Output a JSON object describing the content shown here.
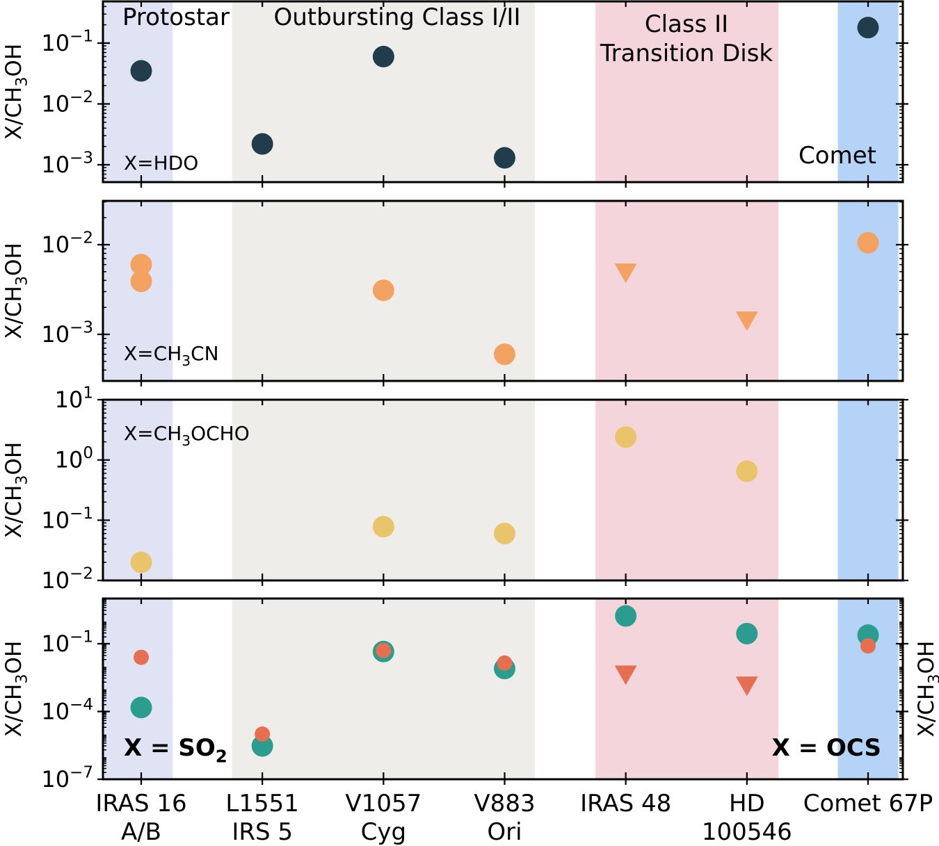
{
  "categories": [
    {
      "line1": "IRAS 16",
      "line2": "A/B"
    },
    {
      "line1": "L1551",
      "line2": "IRS 5"
    },
    {
      "line1": "V1057",
      "line2": "Cyg"
    },
    {
      "line1": "V883",
      "line2": "Ori"
    },
    {
      "line1": "IRAS 48",
      "line2": ""
    },
    {
      "line1": "HD",
      "line2": "100546"
    },
    {
      "line1": "Comet 67P",
      "line2": ""
    }
  ],
  "regions": [
    {
      "label": "Protostar",
      "color": "#e0e3f3",
      "from": 0,
      "to": 0.26
    },
    {
      "label": "Outbursting Class I/II",
      "color": "#eeede9",
      "from": 0.75,
      "to": 3.25
    },
    {
      "label": "Class II\nTransition Disk",
      "color": "#f5d5dc",
      "from": 3.75,
      "to": 5.26
    },
    {
      "label": "Comet",
      "color": "#b5d3f7",
      "from": 5.75,
      "to": 6.25
    }
  ],
  "colors": {
    "hdo": "#213c4b",
    "ch3cn": "#f4a261",
    "ch3ocho": "#e9c46a",
    "so2": "#2a9d8f",
    "ocs": "#e76f51"
  },
  "chart_data": [
    {
      "type": "scatter",
      "yscale": "log",
      "ylim": [
        0.0006,
        0.9
      ],
      "ylabel": "X/CH3OH",
      "annotation": "X=HDO",
      "yticks": [
        "10^-1",
        "10^-2",
        "10^-3"
      ],
      "series": [
        {
          "name": "HDO",
          "points": [
            {
              "x": "IRAS 16 A/B",
              "y": 0.035,
              "marker": "circle"
            },
            {
              "x": "L1551 IRS 5",
              "y": 0.0022,
              "marker": "circle"
            },
            {
              "x": "V1057 Cyg",
              "y": 0.06,
              "marker": "circle"
            },
            {
              "x": "V883 Ori",
              "y": 0.0013,
              "marker": "circle"
            },
            {
              "x": "Comet 67P",
              "y": 0.18,
              "marker": "circle"
            }
          ]
        }
      ]
    },
    {
      "type": "scatter",
      "yscale": "log",
      "ylim": [
        0.0003,
        0.03
      ],
      "ylabel": "X/CH3OH",
      "annotation": "X=CH3CN",
      "yticks": [
        "10^-2",
        "10^-3"
      ],
      "series": [
        {
          "name": "CH3CN",
          "points": [
            {
              "x": "IRAS 16 A/B",
              "y": 0.006,
              "marker": "circle"
            },
            {
              "x": "IRAS 16 A/B",
              "y": 0.0039,
              "marker": "circle"
            },
            {
              "x": "V1057 Cyg",
              "y": 0.0031,
              "marker": "circle"
            },
            {
              "x": "V883 Ori",
              "y": 0.0006,
              "marker": "circle"
            },
            {
              "x": "IRAS 48",
              "y": 0.0048,
              "marker": "triangle-down",
              "note": "upper limit"
            },
            {
              "x": "HD 100546",
              "y": 0.0014,
              "marker": "triangle-down",
              "note": "upper limit"
            },
            {
              "x": "Comet 67P",
              "y": 0.0105,
              "marker": "circle"
            }
          ]
        }
      ]
    },
    {
      "type": "scatter",
      "yscale": "log",
      "ylim": [
        0.01,
        10
      ],
      "ylabel": "X/CH3OH",
      "annotation": "X=CH3OCHO",
      "yticks": [
        "10^1",
        "10^0",
        "10^-1",
        "10^-2"
      ],
      "series": [
        {
          "name": "CH3OCHO",
          "points": [
            {
              "x": "IRAS 16 A/B",
              "y": 0.02,
              "marker": "circle"
            },
            {
              "x": "V1057 Cyg",
              "y": 0.078,
              "marker": "circle"
            },
            {
              "x": "V883 Ori",
              "y": 0.06,
              "marker": "circle"
            },
            {
              "x": "IRAS 48",
              "y": 2.4,
              "marker": "circle"
            },
            {
              "x": "HD 100546",
              "y": 0.65,
              "marker": "circle"
            }
          ]
        }
      ]
    },
    {
      "type": "scatter",
      "yscale": "log",
      "ylim": [
        1e-07,
        3
      ],
      "ylabel": "X/CH3OH",
      "ylabel_right": "X/CH3OH",
      "annotation_left": "X = SO2",
      "annotation_right": "X = OCS",
      "yticks": [
        "10^-1",
        "10^-4",
        "10^-7"
      ],
      "series": [
        {
          "name": "SO2",
          "points": [
            {
              "x": "IRAS 16 A/B",
              "y": 0.00015,
              "marker": "circle"
            },
            {
              "x": "L1551 IRS 5",
              "y": 3e-06,
              "marker": "circle"
            },
            {
              "x": "V1057 Cyg",
              "y": 0.045,
              "marker": "circle"
            },
            {
              "x": "V883 Ori",
              "y": 0.008,
              "marker": "circle"
            },
            {
              "x": "IRAS 48",
              "y": 1.7,
              "marker": "circle"
            },
            {
              "x": "HD 100546",
              "y": 0.28,
              "marker": "circle"
            },
            {
              "x": "Comet 67P",
              "y": 0.24,
              "marker": "circle"
            }
          ]
        },
        {
          "name": "OCS",
          "points": [
            {
              "x": "IRAS 16 A/B",
              "y": 0.025,
              "marker": "circle"
            },
            {
              "x": "L1551 IRS 5",
              "y": 1e-05,
              "marker": "circle"
            },
            {
              "x": "V1057 Cyg",
              "y": 0.05,
              "marker": "circle"
            },
            {
              "x": "V883 Ori",
              "y": 0.014,
              "marker": "circle"
            },
            {
              "x": "IRAS 48",
              "y": 0.004,
              "marker": "triangle-down",
              "note": "upper limit"
            },
            {
              "x": "HD 100546",
              "y": 0.0013,
              "marker": "triangle-down",
              "note": "upper limit"
            },
            {
              "x": "Comet 67P",
              "y": 0.08,
              "marker": "circle"
            }
          ]
        }
      ]
    }
  ]
}
